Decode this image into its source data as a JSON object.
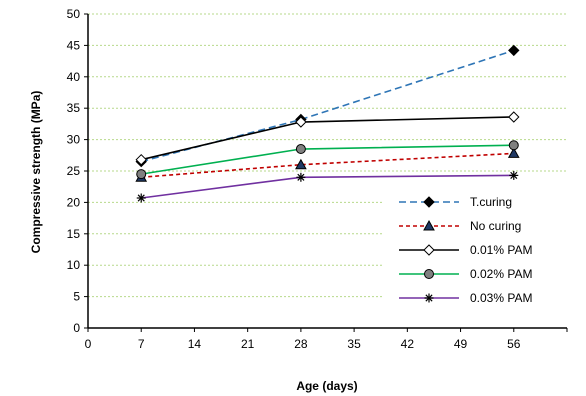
{
  "chart_data": {
    "type": "line",
    "title": "",
    "xlabel": "Age (days)",
    "ylabel": "Compressive strength (MPa)",
    "xlim": [
      0,
      63
    ],
    "ylim": [
      0,
      50
    ],
    "xticks": [
      0,
      7,
      14,
      21,
      28,
      35,
      42,
      49,
      56
    ],
    "yticks": [
      0,
      5,
      10,
      15,
      20,
      25,
      30,
      35,
      40,
      45,
      50
    ],
    "grid": {
      "horizontal": true,
      "vertical": false,
      "color": "#b7d98b"
    },
    "legend_position": "bottom-right",
    "series": [
      {
        "name": "T.curing",
        "x": [
          7,
          28,
          56
        ],
        "y": [
          26.5,
          33.2,
          44.2
        ],
        "color": "#2e75b6",
        "dash": "dashed",
        "marker": "diamond-filled",
        "markerFill": "#000000"
      },
      {
        "name": "No curing",
        "x": [
          7,
          28,
          56
        ],
        "y": [
          24.0,
          26.0,
          27.8
        ],
        "color": "#c00000",
        "dash": "dotted",
        "marker": "triangle",
        "markerFill": "#1f3864"
      },
      {
        "name": "0.01% PAM",
        "x": [
          7,
          28,
          56
        ],
        "y": [
          26.8,
          32.8,
          33.6
        ],
        "color": "#000000",
        "dash": "solid",
        "marker": "diamond-open",
        "markerFill": "#ffffff"
      },
      {
        "name": "0.02% PAM",
        "x": [
          7,
          28,
          56
        ],
        "y": [
          24.5,
          28.5,
          29.1
        ],
        "color": "#00b050",
        "dash": "solid",
        "marker": "circle",
        "markerFill": "#808080"
      },
      {
        "name": "0.03% PAM",
        "x": [
          7,
          28,
          56
        ],
        "y": [
          20.7,
          24.0,
          24.3
        ],
        "color": "#7030a0",
        "dash": "solid",
        "marker": "asterisk",
        "markerFill": "#000000"
      }
    ]
  }
}
